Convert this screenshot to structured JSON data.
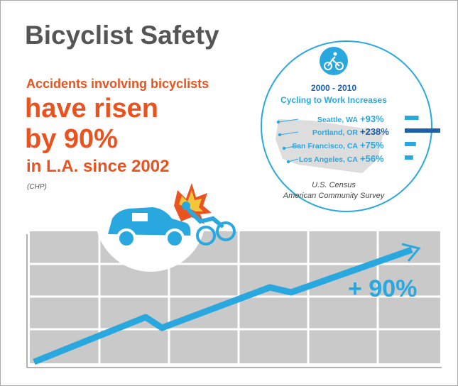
{
  "title": "Bicyclist Safety",
  "headline": {
    "line1": "Accidents involving bicyclists",
    "line2": "have risen",
    "line3": "by 90%",
    "line4": "in L.A. since 2002",
    "source": "(CHP)"
  },
  "inset": {
    "period": "2000 - 2010",
    "title": "Cycling to Work Increases",
    "cities": [
      {
        "name": "Seattle, WA",
        "value": 93,
        "value_label": "+93%"
      },
      {
        "name": "Portland, OR",
        "value": 238,
        "value_label": "+238%"
      },
      {
        "name": "San Francisco, CA",
        "value": 75,
        "value_label": "+75%"
      },
      {
        "name": "Los Angeles, CA",
        "value": 56,
        "value_label": "+56%"
      }
    ],
    "source_line1": "U.S. Census",
    "source_line2": "American Community Survey"
  },
  "graph_label": "+ 90%"
}
